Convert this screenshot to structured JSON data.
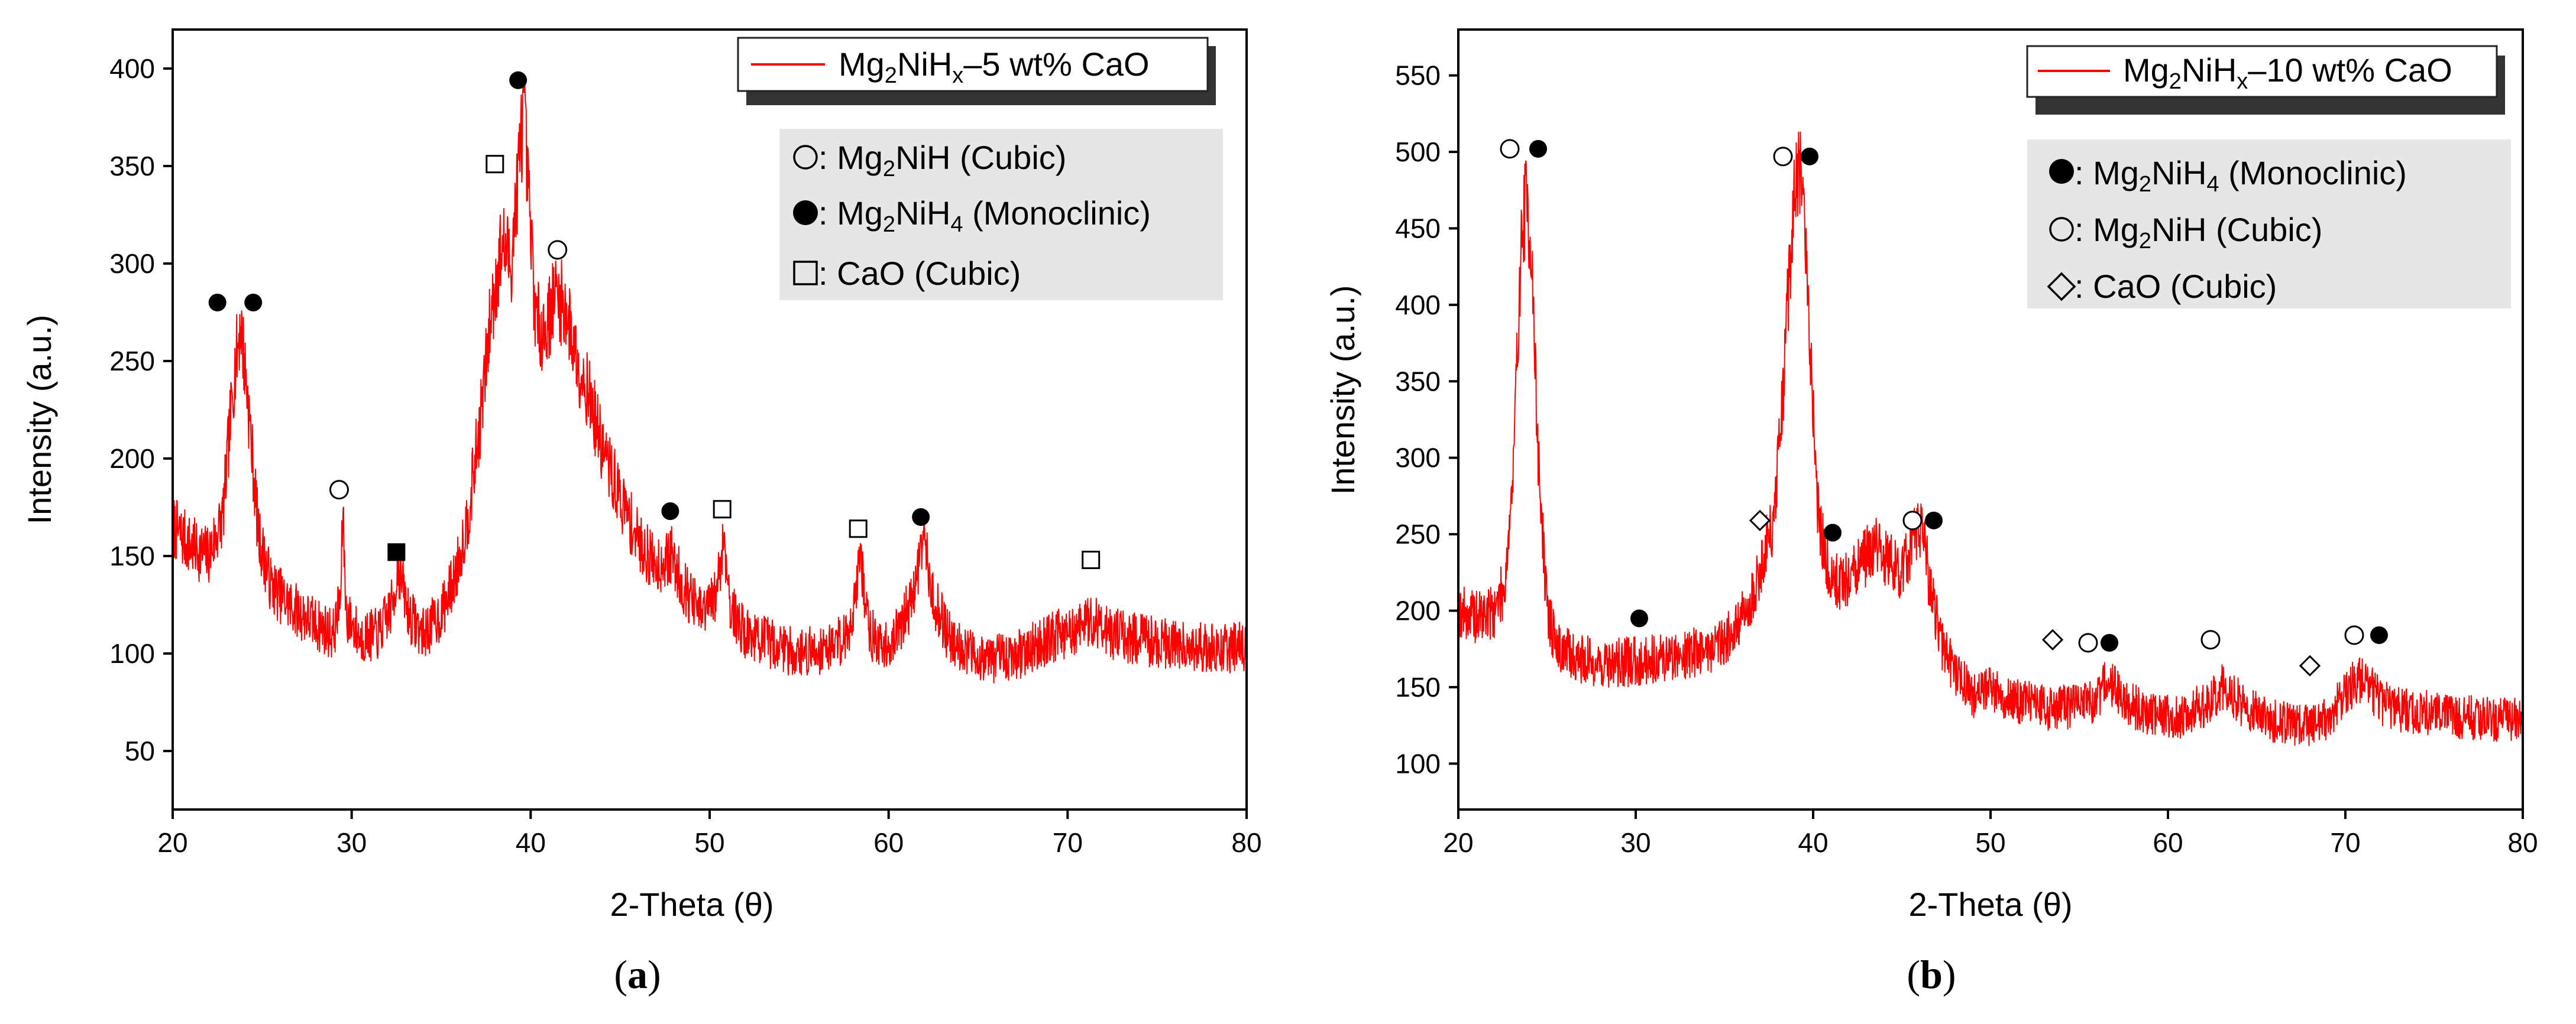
{
  "figure": {
    "colors": {
      "series": "#ff0000",
      "legend_bg": "#e8e8e8",
      "axis": "#000000"
    },
    "charts": [
      {
        "panel_label": {
          "open": "(",
          "letter": "a",
          "close": ")"
        },
        "legend_line": {
          "base": "Mg",
          "s1": "2",
          "mid": "NiH",
          "s2": "x",
          "tail": "–5 wt% CaO"
        },
        "markers": [
          {
            "symbol": "open-circle",
            "base": "Mg",
            "s1": "2",
            "mid": "NiH",
            "s2": "",
            "tail": " (Cubic)"
          },
          {
            "symbol": "filled-circle",
            "base": "Mg",
            "s1": "2",
            "mid": "NiH",
            "s2": "4",
            "tail": " (Monoclinic)"
          },
          {
            "symbol": "open-square",
            "base": "CaO",
            "s1": "",
            "mid": "",
            "s2": "",
            "tail": " (Cubic)"
          }
        ]
      },
      {
        "panel_label": {
          "open": "(",
          "letter": "b",
          "close": ")"
        },
        "legend_line": {
          "base": "Mg",
          "s1": "2",
          "mid": "NiH",
          "s2": "x",
          "tail": "–10 wt% CaO"
        },
        "markers": [
          {
            "symbol": "filled-circle",
            "base": "Mg",
            "s1": "2",
            "mid": "NiH",
            "s2": "4",
            "tail": " (Monoclinic)"
          },
          {
            "symbol": "open-circle",
            "base": "Mg",
            "s1": "2",
            "mid": "NiH",
            "s2": "",
            "tail": " (Cubic)"
          },
          {
            "symbol": "open-diamond",
            "base": "CaO",
            "s1": "",
            "mid": "",
            "s2": "",
            "tail": " (Cubic)"
          }
        ]
      }
    ]
  },
  "chart_data": [
    {
      "type": "line",
      "title": "",
      "xlabel": "2-Theta (θ)",
      "ylabel": "Intensity (a.u.)",
      "xlim": [
        20,
        80
      ],
      "ylim": [
        20,
        420
      ],
      "xticks": [
        20,
        30,
        40,
        50,
        60,
        70,
        80
      ],
      "yticks": [
        50,
        100,
        150,
        200,
        250,
        300,
        350,
        400
      ],
      "series": [
        {
          "name": "Mg2NiHx–5 wt% CaO",
          "noise": 13,
          "x": [
            20,
            21,
            22,
            22.8,
            23.4,
            23.8,
            24.2,
            24.8,
            25.5,
            26.5,
            28,
            29,
            29.4,
            29.5,
            29.7,
            30.5,
            31.5,
            32.3,
            32.6,
            33.2,
            34,
            35,
            35.8,
            36.5,
            37.2,
            37.8,
            38.4,
            38.9,
            39.3,
            39.6,
            39.9,
            40.3,
            40.8,
            41.4,
            42,
            42.6,
            43.2,
            44,
            45,
            46,
            47,
            47.9,
            48.5,
            49.5,
            50.3,
            50.8,
            51.2,
            52,
            53.5,
            55,
            56.5,
            57.8,
            58.4,
            58.9,
            59.6,
            60.5,
            61.4,
            61.9,
            62.5,
            63.3,
            64.5,
            66,
            67.5,
            69,
            70.5,
            71.5,
            72.5,
            74,
            76,
            78,
            80
          ],
          "y": [
            165,
            155,
            150,
            170,
            240,
            270,
            230,
            160,
            135,
            125,
            115,
            110,
            130,
            175,
            120,
            108,
            110,
            125,
            145,
            120,
            110,
            120,
            140,
            170,
            220,
            275,
            310,
            300,
            345,
            380,
            330,
            270,
            265,
            285,
            275,
            250,
            235,
            205,
            180,
            158,
            145,
            150,
            135,
            120,
            128,
            160,
            122,
            110,
            105,
            100,
            103,
            110,
            150,
            112,
            102,
            110,
            130,
            160,
            128,
            110,
            100,
            97,
            100,
            108,
            112,
            118,
            110,
            107,
            105,
            103,
            103
          ]
        }
      ],
      "annotations": [
        {
          "symbol": "filled-circle",
          "x": 22.5,
          "y": 280
        },
        {
          "symbol": "filled-circle",
          "x": 24.5,
          "y": 280
        },
        {
          "symbol": "open-circle",
          "x": 29.3,
          "y": 184
        },
        {
          "symbol": "filled-square",
          "x": 32.5,
          "y": 152
        },
        {
          "symbol": "open-square",
          "x": 38,
          "y": 351
        },
        {
          "symbol": "filled-circle",
          "x": 39.3,
          "y": 394
        },
        {
          "symbol": "open-circle",
          "x": 41.5,
          "y": 307
        },
        {
          "symbol": "filled-circle",
          "x": 47.8,
          "y": 173
        },
        {
          "symbol": "open-square",
          "x": 50.7,
          "y": 174
        },
        {
          "symbol": "open-square",
          "x": 58.3,
          "y": 164
        },
        {
          "symbol": "filled-circle",
          "x": 61.8,
          "y": 170
        },
        {
          "symbol": "open-square",
          "x": 71.3,
          "y": 148
        }
      ]
    },
    {
      "type": "line",
      "title": "",
      "xlabel": "2-Theta (θ)",
      "ylabel": "Intensity (a.u.)",
      "xlim": [
        20,
        80
      ],
      "ylim": [
        70,
        580
      ],
      "xticks": [
        20,
        30,
        40,
        50,
        60,
        70,
        80
      ],
      "yticks": [
        100,
        150,
        200,
        250,
        300,
        350,
        400,
        450,
        500,
        550
      ],
      "series": [
        {
          "name": "Mg2NiHx–10 wt% CaO",
          "noise": 13,
          "x": [
            20,
            21,
            22,
            22.6,
            23.1,
            23.5,
            23.8,
            24.1,
            24.5,
            25,
            25.6,
            26.5,
            28,
            30,
            32,
            34,
            35.5,
            36.5,
            37.2,
            37.8,
            38.3,
            38.7,
            39.1,
            39.4,
            39.8,
            40.3,
            41,
            42,
            43,
            43.5,
            44.2,
            45,
            45.6,
            46.1,
            46.6,
            47.2,
            48,
            49,
            50,
            51,
            52,
            53.5,
            55,
            56,
            56.6,
            57.5,
            59,
            60.5,
            62,
            63,
            64.5,
            66,
            67.5,
            69,
            70.2,
            71,
            72,
            73,
            75,
            77,
            80
          ],
          "y": [
            200,
            195,
            200,
            215,
            290,
            430,
            470,
            440,
            300,
            200,
            175,
            170,
            165,
            167,
            170,
            175,
            185,
            205,
            235,
            260,
            340,
            430,
            490,
            475,
            380,
            260,
            220,
            220,
            235,
            245,
            232,
            225,
            245,
            255,
            215,
            180,
            160,
            145,
            150,
            142,
            140,
            136,
            138,
            140,
            155,
            140,
            133,
            130,
            138,
            150,
            136,
            128,
            125,
            128,
            150,
            155,
            140,
            135,
            133,
            130,
            128
          ]
        }
      ],
      "annotations": [
        {
          "symbol": "open-circle",
          "x": 22.9,
          "y": 502
        },
        {
          "symbol": "filled-circle",
          "x": 24.5,
          "y": 502
        },
        {
          "symbol": "filled-circle",
          "x": 30.2,
          "y": 195
        },
        {
          "symbol": "open-diamond",
          "x": 37,
          "y": 259
        },
        {
          "symbol": "open-circle",
          "x": 38.3,
          "y": 497
        },
        {
          "symbol": "filled-circle",
          "x": 39.8,
          "y": 497
        },
        {
          "symbol": "filled-circle",
          "x": 41.1,
          "y": 251
        },
        {
          "symbol": "open-circle",
          "x": 45.6,
          "y": 259
        },
        {
          "symbol": "filled-circle",
          "x": 46.8,
          "y": 259
        },
        {
          "symbol": "open-diamond",
          "x": 53.5,
          "y": 181
        },
        {
          "symbol": "open-circle",
          "x": 55.5,
          "y": 179
        },
        {
          "symbol": "filled-circle",
          "x": 56.7,
          "y": 179
        },
        {
          "symbol": "open-circle",
          "x": 62.4,
          "y": 181
        },
        {
          "symbol": "open-diamond",
          "x": 68,
          "y": 164
        },
        {
          "symbol": "open-circle",
          "x": 70.5,
          "y": 184
        },
        {
          "symbol": "filled-circle",
          "x": 71.9,
          "y": 184
        }
      ]
    }
  ]
}
